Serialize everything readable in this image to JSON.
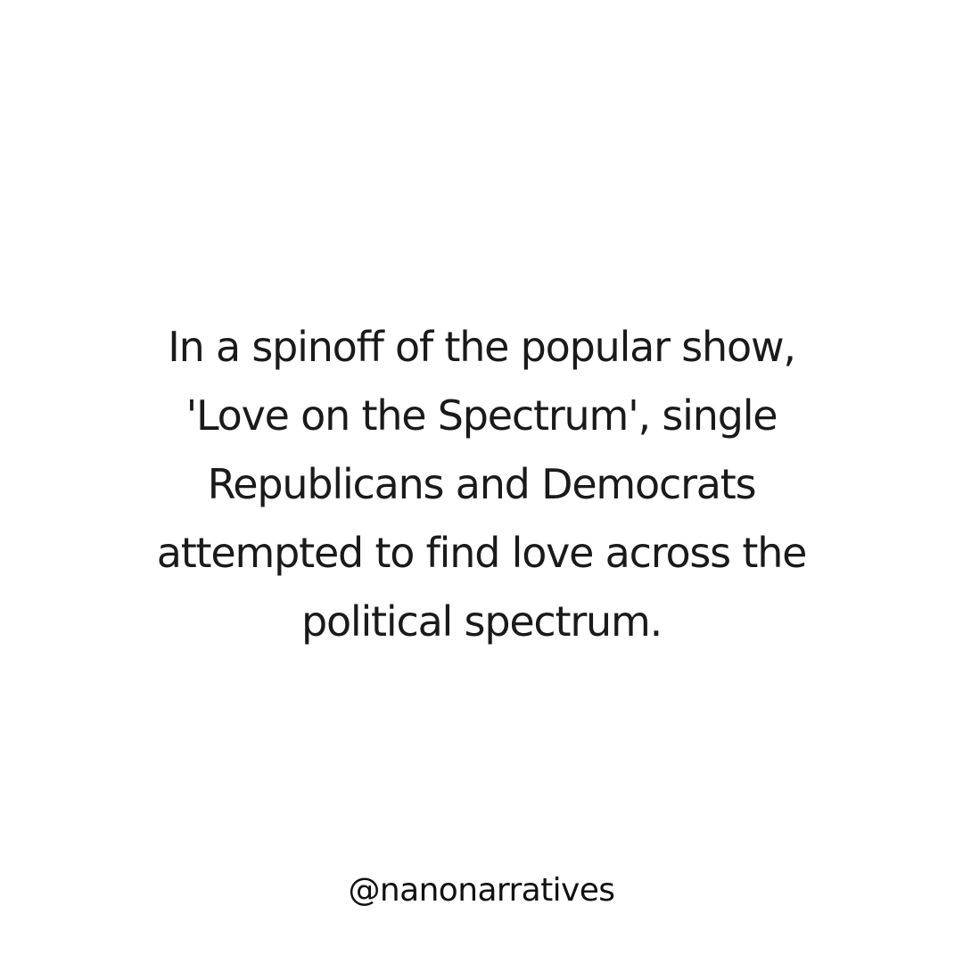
{
  "post": {
    "lines": [
      "In a spinoff of the popular show,",
      "'Love on the Spectrum', single",
      "Republicans and Democrats",
      "attempted to find love across the",
      "political spectrum."
    ],
    "handle": "@nanonarratives"
  },
  "colors": {
    "background": "#ffffff",
    "text": "#1a1a1a"
  }
}
